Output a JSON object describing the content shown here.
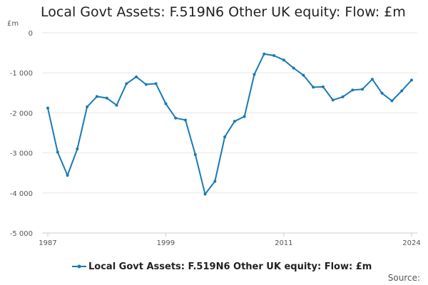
{
  "chart_data": {
    "type": "line",
    "title": "Local Govt Assets: F.519N6 Other UK equity: Flow: £m",
    "ylabel": "£m",
    "xlabel": "",
    "xlim": [
      1987,
      2024
    ],
    "ylim": [
      -5000,
      0
    ],
    "x_ticks": [
      "1987",
      "1999",
      "2011",
      "2024"
    ],
    "y_ticks": [
      {
        "value": 0,
        "label": "0"
      },
      {
        "value": -1000,
        "label": "-1 000"
      },
      {
        "value": -2000,
        "label": "-2 000"
      },
      {
        "value": -3000,
        "label": "-3 000"
      },
      {
        "value": -4000,
        "label": "-4 000"
      },
      {
        "value": -5000,
        "label": "-5 000"
      }
    ],
    "grid": "horizontal",
    "legend_position": "bottom",
    "series": [
      {
        "name": "Local Govt Assets: F.519N6 Other UK equity: Flow: £m",
        "color": "#1a7ab5",
        "x": [
          1987,
          1988,
          1989,
          1990,
          1991,
          1992,
          1993,
          1994,
          1995,
          1996,
          1997,
          1998,
          1999,
          2000,
          2001,
          2002,
          2003,
          2004,
          2005,
          2006,
          2007,
          2008,
          2009,
          2010,
          2011,
          2012,
          2013,
          2014,
          2015,
          2016,
          2017,
          2018,
          2019,
          2020,
          2021,
          2022,
          2023,
          2024
        ],
        "values": [
          -1880,
          -2980,
          -3560,
          -2900,
          -1850,
          -1590,
          -1630,
          -1810,
          -1270,
          -1100,
          -1290,
          -1270,
          -1770,
          -2130,
          -2180,
          -3040,
          -4030,
          -3710,
          -2600,
          -2210,
          -2090,
          -1040,
          -530,
          -570,
          -680,
          -880,
          -1060,
          -1360,
          -1350,
          -1680,
          -1600,
          -1430,
          -1410,
          -1160,
          -1510,
          -1700,
          -1450,
          -1180
        ]
      }
    ],
    "source_label": "Source:"
  }
}
